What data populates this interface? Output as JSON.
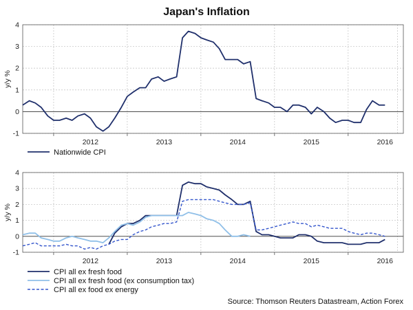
{
  "title": "Japan's Inflation",
  "source": "Source: Thomson Reuters Datastream, Action Forex",
  "colors": {
    "navy": "#1f2f6b",
    "light_blue": "#8fbfe8",
    "dashed_blue": "#3355cc"
  },
  "chart_data": [
    {
      "type": "line",
      "ylabel": "y/y %",
      "ylim": [
        -1,
        4
      ],
      "yticks": [
        "-1",
        "0",
        "1",
        "2",
        "3",
        "4"
      ],
      "xlim": [
        2011.58,
        2016.75
      ],
      "xticks": [
        2012,
        2013,
        2014,
        2015,
        2016
      ],
      "xtick_labels": [
        "2012",
        "2013",
        "2014",
        "2015",
        "2016"
      ],
      "grid": true,
      "legend_position": "bottom-left",
      "series": [
        {
          "name": "Nationwide CPI",
          "style": "solid",
          "color": "#1f2f6b",
          "x": [
            2011.58,
            2011.67,
            2011.75,
            2011.83,
            2011.92,
            2012.0,
            2012.08,
            2012.17,
            2012.25,
            2012.33,
            2012.42,
            2012.5,
            2012.58,
            2012.67,
            2012.75,
            2012.83,
            2012.92,
            2013.0,
            2013.08,
            2013.17,
            2013.25,
            2013.33,
            2013.42,
            2013.5,
            2013.58,
            2013.67,
            2013.75,
            2013.83,
            2013.92,
            2014.0,
            2014.08,
            2014.17,
            2014.25,
            2014.33,
            2014.42,
            2014.5,
            2014.58,
            2014.67,
            2014.75,
            2014.83,
            2014.92,
            2015.0,
            2015.08,
            2015.17,
            2015.25,
            2015.33,
            2015.42,
            2015.5,
            2015.58,
            2015.67,
            2015.75,
            2015.83,
            2015.92,
            2016.0,
            2016.08,
            2016.17,
            2016.25,
            2016.33,
            2016.42,
            2016.5
          ],
          "values": [
            0.3,
            0.5,
            0.4,
            0.2,
            -0.2,
            -0.4,
            -0.4,
            -0.3,
            -0.4,
            -0.2,
            -0.1,
            -0.3,
            -0.7,
            -0.9,
            -0.7,
            -0.3,
            0.2,
            0.7,
            0.9,
            1.1,
            1.1,
            1.5,
            1.6,
            1.4,
            1.5,
            1.6,
            3.4,
            3.7,
            3.6,
            3.4,
            3.3,
            3.2,
            2.9,
            2.4,
            2.4,
            2.4,
            2.2,
            2.3,
            0.6,
            0.5,
            0.4,
            0.2,
            0.2,
            0.0,
            0.3,
            0.3,
            0.2,
            -0.1,
            0.2,
            0.0,
            -0.3,
            -0.5,
            -0.4,
            -0.4,
            -0.5,
            -0.5,
            0.1,
            0.5,
            0.3,
            0.3
          ]
        }
      ]
    },
    {
      "type": "line",
      "ylabel": "y/y %",
      "ylim": [
        -1,
        4
      ],
      "yticks": [
        "-1",
        "0",
        "1",
        "2",
        "3",
        "4"
      ],
      "xlim": [
        2011.58,
        2016.75
      ],
      "xticks": [
        2012,
        2013,
        2014,
        2015,
        2016
      ],
      "xtick_labels": [
        "2012",
        "2013",
        "2014",
        "2015",
        "2016"
      ],
      "grid": true,
      "legend_position": "bottom-left",
      "series": [
        {
          "name": "CPI all ex fresh food",
          "style": "solid",
          "color": "#1f2f6b",
          "x": [
            2012.75,
            2012.83,
            2012.92,
            2013.0,
            2013.08,
            2013.17,
            2013.25,
            2013.33,
            2013.42,
            2013.5,
            2013.58,
            2013.67,
            2013.75,
            2013.83,
            2013.92,
            2014.0,
            2014.08,
            2014.17,
            2014.25,
            2014.33,
            2014.42,
            2014.5,
            2014.58,
            2014.67,
            2014.75,
            2014.83,
            2014.92,
            2015.0,
            2015.08,
            2015.17,
            2015.25,
            2015.33,
            2015.42,
            2015.5,
            2015.58,
            2015.67,
            2015.75,
            2015.83,
            2015.92,
            2016.0,
            2016.08,
            2016.17,
            2016.25,
            2016.33,
            2016.42,
            2016.5
          ],
          "values": [
            -0.5,
            0.2,
            0.6,
            0.8,
            0.8,
            1.0,
            1.3,
            1.3,
            1.3,
            1.3,
            1.3,
            1.3,
            3.2,
            3.4,
            3.3,
            3.3,
            3.1,
            3.0,
            2.9,
            2.6,
            2.3,
            2.0,
            2.0,
            2.2,
            0.3,
            0.1,
            0.1,
            0.0,
            -0.1,
            -0.1,
            -0.1,
            0.1,
            0.1,
            0.0,
            -0.3,
            -0.4,
            -0.4,
            -0.4,
            -0.4,
            -0.5,
            -0.5,
            -0.5,
            -0.4,
            -0.4,
            -0.4,
            -0.2
          ]
        },
        {
          "name": "CPI all ex fresh food (ex consumption tax)",
          "style": "solid",
          "color": "#8fbfe8",
          "x": [
            2011.58,
            2011.67,
            2011.75,
            2011.83,
            2011.92,
            2012.0,
            2012.08,
            2012.17,
            2012.25,
            2012.33,
            2012.42,
            2012.5,
            2012.58,
            2012.67,
            2012.75,
            2012.83,
            2012.92,
            2013.0,
            2013.08,
            2013.17,
            2013.25,
            2013.33,
            2013.42,
            2013.5,
            2013.58,
            2013.67,
            2013.75,
            2013.83,
            2013.92,
            2014.0,
            2014.08,
            2014.17,
            2014.25,
            2014.33,
            2014.42,
            2014.5,
            2014.58,
            2014.67
          ],
          "values": [
            0.1,
            0.2,
            0.2,
            -0.1,
            -0.2,
            -0.3,
            -0.3,
            -0.1,
            0.0,
            -0.1,
            -0.2,
            -0.3,
            -0.3,
            -0.4,
            -0.1,
            0.3,
            0.7,
            0.8,
            0.7,
            0.9,
            1.2,
            1.3,
            1.3,
            1.3,
            1.3,
            1.3,
            1.3,
            1.5,
            1.4,
            1.3,
            1.1,
            1.0,
            0.8,
            0.4,
            0.0,
            0.0,
            0.1,
            0.0
          ]
        },
        {
          "name": "CPI all ex food ex energy",
          "style": "dashed",
          "color": "#3355cc",
          "x": [
            2011.58,
            2011.67,
            2011.75,
            2011.83,
            2011.92,
            2012.0,
            2012.08,
            2012.17,
            2012.25,
            2012.33,
            2012.42,
            2012.5,
            2012.58,
            2012.67,
            2012.75,
            2012.83,
            2012.92,
            2013.0,
            2013.08,
            2013.17,
            2013.25,
            2013.33,
            2013.42,
            2013.5,
            2013.58,
            2013.67,
            2013.75,
            2013.83,
            2013.92,
            2014.0,
            2014.08,
            2014.17,
            2014.25,
            2014.33,
            2014.42,
            2014.5,
            2014.58,
            2014.67,
            2014.75,
            2014.83,
            2014.92,
            2015.0,
            2015.08,
            2015.17,
            2015.25,
            2015.33,
            2015.42,
            2015.5,
            2015.58,
            2015.67,
            2015.75,
            2015.83,
            2015.92,
            2016.0,
            2016.08,
            2016.17,
            2016.25,
            2016.33,
            2016.42,
            2016.5
          ],
          "values": [
            -0.6,
            -0.5,
            -0.4,
            -0.6,
            -0.6,
            -0.6,
            -0.6,
            -0.5,
            -0.6,
            -0.6,
            -0.8,
            -0.7,
            -0.8,
            -0.6,
            -0.5,
            -0.3,
            -0.2,
            -0.2,
            0.1,
            0.3,
            0.4,
            0.6,
            0.7,
            0.8,
            0.8,
            0.9,
            2.2,
            2.3,
            2.3,
            2.3,
            2.3,
            2.3,
            2.2,
            2.1,
            2.0,
            2.0,
            2.0,
            2.1,
            0.4,
            0.4,
            0.5,
            0.6,
            0.7,
            0.8,
            0.9,
            0.8,
            0.8,
            0.6,
            0.7,
            0.6,
            0.5,
            0.5,
            0.5,
            0.3,
            0.2,
            0.1,
            0.2,
            0.2,
            0.1,
            0.0
          ]
        }
      ]
    }
  ]
}
